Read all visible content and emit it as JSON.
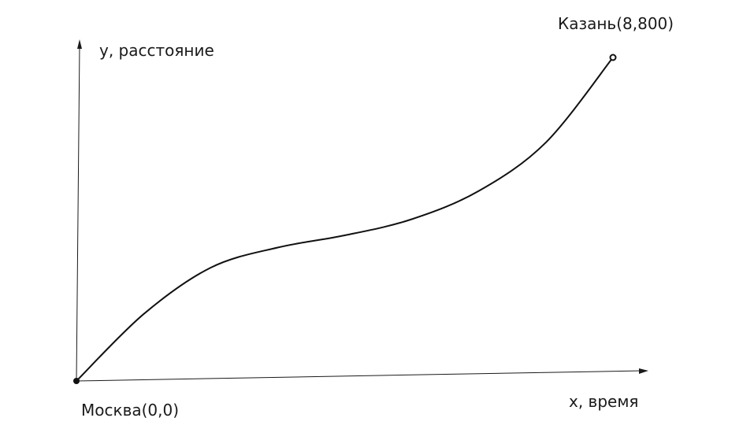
{
  "chart_data": {
    "type": "line",
    "xlabel": "x, время",
    "ylabel": "y, расстояние",
    "xlim": [
      0,
      8
    ],
    "ylim": [
      0,
      800
    ],
    "grid": false,
    "series": [
      {
        "x": [
          0,
          1,
          2,
          3,
          4,
          5,
          6,
          7,
          8
        ],
        "y": [
          0,
          165,
          280,
          330,
          360,
          400,
          470,
          590,
          800
        ],
        "color": "#111111"
      }
    ],
    "annotations": [
      {
        "text": "Москва(0,0)",
        "x": 0,
        "y": 0
      },
      {
        "text": "Казань(8,800)",
        "x": 8,
        "y": 800
      }
    ]
  }
}
